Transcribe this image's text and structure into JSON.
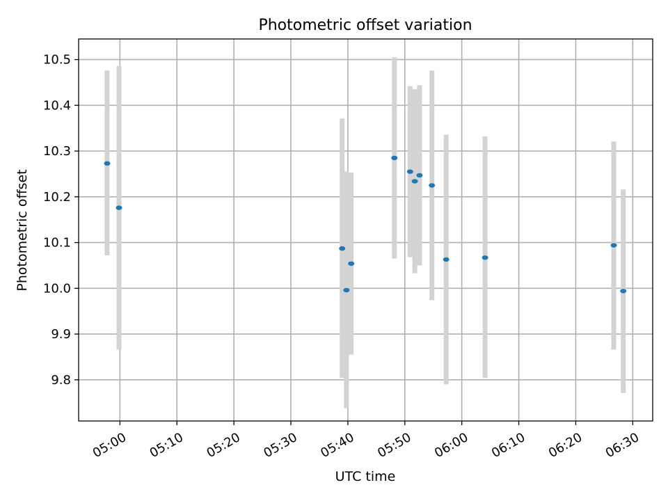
{
  "chart_data": {
    "type": "scatter",
    "title": "Photometric offset variation",
    "xlabel": "UTC time",
    "ylabel": "Photometric offset",
    "x_type": "time",
    "xlim": [
      "04:52:45",
      "06:33:30"
    ],
    "ylim": [
      9.71,
      10.545
    ],
    "x_ticks": [
      "05:00",
      "05:10",
      "05:20",
      "05:30",
      "05:40",
      "05:50",
      "06:00",
      "06:10",
      "06:20",
      "06:30"
    ],
    "y_ticks": [
      "9.8",
      "9.9",
      "10.0",
      "10.1",
      "10.2",
      "10.3",
      "10.4",
      "10.5"
    ],
    "grid": true,
    "legend": "none",
    "series": [
      {
        "marker_color": "#1f77b4",
        "error_bar_color": "#d3d3d3",
        "points": [
          {
            "x": "04:57:45",
            "y": 10.273,
            "ylow": 10.072,
            "yhigh": 10.476
          },
          {
            "x": "04:59:50",
            "y": 10.176,
            "ylow": 9.866,
            "yhigh": 10.486
          },
          {
            "x": "05:39:00",
            "y": 10.087,
            "ylow": 9.804,
            "yhigh": 10.371
          },
          {
            "x": "05:39:45",
            "y": 9.996,
            "ylow": 9.738,
            "yhigh": 10.255
          },
          {
            "x": "05:40:35",
            "y": 10.054,
            "ylow": 9.855,
            "yhigh": 10.253
          },
          {
            "x": "05:48:10",
            "y": 10.285,
            "ylow": 10.065,
            "yhigh": 10.505
          },
          {
            "x": "05:50:55",
            "y": 10.255,
            "ylow": 10.068,
            "yhigh": 10.442
          },
          {
            "x": "05:51:45",
            "y": 10.234,
            "ylow": 10.033,
            "yhigh": 10.435
          },
          {
            "x": "05:52:35",
            "y": 10.247,
            "ylow": 10.05,
            "yhigh": 10.444
          },
          {
            "x": "05:54:45",
            "y": 10.225,
            "ylow": 9.974,
            "yhigh": 10.476
          },
          {
            "x": "05:57:15",
            "y": 10.063,
            "ylow": 9.79,
            "yhigh": 10.336
          },
          {
            "x": "06:04:05",
            "y": 10.067,
            "ylow": 9.804,
            "yhigh": 10.332
          },
          {
            "x": "06:26:40",
            "y": 10.094,
            "ylow": 9.866,
            "yhigh": 10.321
          },
          {
            "x": "06:28:20",
            "y": 9.994,
            "ylow": 9.771,
            "yhigh": 10.216
          }
        ]
      }
    ]
  }
}
